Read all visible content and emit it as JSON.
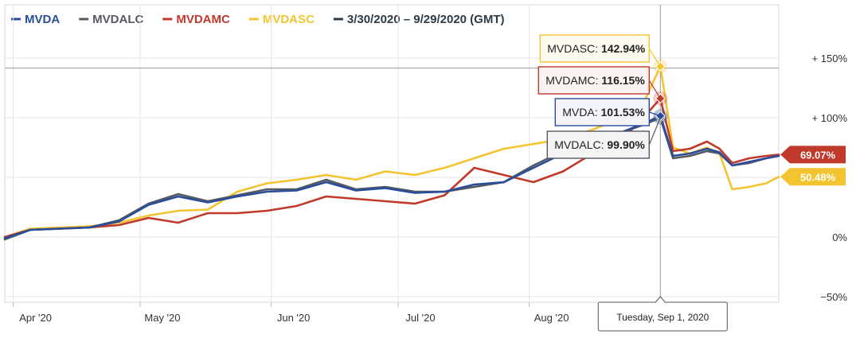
{
  "legend": {
    "items": [
      {
        "label": "MVDA",
        "color": "#2a4d9b"
      },
      {
        "label": "MVDALC",
        "color": "#555a61"
      },
      {
        "label": "MVDAMC",
        "color": "#c0392b"
      },
      {
        "label": "MVDASC",
        "color": "#f4c430"
      }
    ],
    "range_label": "3/30/2020 – 9/29/2020 (GMT)",
    "range_color": "#2e3b45"
  },
  "chart_data": {
    "type": "line",
    "x_unit": "date",
    "x_range": [
      "2020-03-30",
      "2020-09-29"
    ],
    "y_unit": "percent change",
    "ylim": [
      -50,
      160
    ],
    "y_ticks": [
      {
        "value": 150,
        "label": "+ 150%"
      },
      {
        "value": 100,
        "label": "+ 100%"
      },
      {
        "value": 0,
        "label": "0%"
      },
      {
        "value": -50,
        "label": "−50%"
      }
    ],
    "x_ticks": [
      {
        "date": "2020-04-01",
        "label": "Apr '20"
      },
      {
        "date": "2020-05-01",
        "label": "May '20"
      },
      {
        "date": "2020-06-01",
        "label": "Jun '20"
      },
      {
        "date": "2020-07-01",
        "label": "Jul '20"
      },
      {
        "date": "2020-08-01",
        "label": "Aug '20"
      }
    ],
    "grid": true,
    "series": [
      {
        "name": "MVDASC",
        "color": "#f4c430",
        "points": [
          [
            "2020-03-30",
            0
          ],
          [
            "2020-04-05",
            7
          ],
          [
            "2020-04-12",
            8
          ],
          [
            "2020-04-19",
            9
          ],
          [
            "2020-04-26",
            12
          ],
          [
            "2020-05-03",
            18
          ],
          [
            "2020-05-10",
            22
          ],
          [
            "2020-05-17",
            23
          ],
          [
            "2020-05-24",
            38
          ],
          [
            "2020-05-31",
            45
          ],
          [
            "2020-06-07",
            48
          ],
          [
            "2020-06-14",
            52
          ],
          [
            "2020-06-21",
            48
          ],
          [
            "2020-06-28",
            55
          ],
          [
            "2020-07-05",
            52
          ],
          [
            "2020-07-12",
            58
          ],
          [
            "2020-07-19",
            66
          ],
          [
            "2020-07-26",
            74
          ],
          [
            "2020-08-02",
            78
          ],
          [
            "2020-08-09",
            82
          ],
          [
            "2020-08-16",
            90
          ],
          [
            "2020-08-23",
            100
          ],
          [
            "2020-08-28",
            112
          ],
          [
            "2020-09-01",
            142.94
          ],
          [
            "2020-09-04",
            75
          ],
          [
            "2020-09-08",
            70
          ],
          [
            "2020-09-12",
            75
          ],
          [
            "2020-09-15",
            70
          ],
          [
            "2020-09-18",
            40
          ],
          [
            "2020-09-22",
            42
          ],
          [
            "2020-09-26",
            45
          ],
          [
            "2020-09-29",
            50.48
          ]
        ]
      },
      {
        "name": "MVDAMC",
        "color": "#c0392b",
        "points": [
          [
            "2020-03-30",
            0
          ],
          [
            "2020-04-05",
            6
          ],
          [
            "2020-04-12",
            7
          ],
          [
            "2020-04-19",
            8
          ],
          [
            "2020-04-26",
            10
          ],
          [
            "2020-05-03",
            16
          ],
          [
            "2020-05-10",
            12
          ],
          [
            "2020-05-17",
            20
          ],
          [
            "2020-05-24",
            20
          ],
          [
            "2020-05-31",
            22
          ],
          [
            "2020-06-07",
            26
          ],
          [
            "2020-06-14",
            34
          ],
          [
            "2020-06-21",
            32
          ],
          [
            "2020-06-28",
            30
          ],
          [
            "2020-07-05",
            28
          ],
          [
            "2020-07-12",
            35
          ],
          [
            "2020-07-19",
            58
          ],
          [
            "2020-07-26",
            52
          ],
          [
            "2020-08-02",
            46
          ],
          [
            "2020-08-09",
            55
          ],
          [
            "2020-08-16",
            70
          ],
          [
            "2020-08-23",
            82
          ],
          [
            "2020-08-28",
            100
          ],
          [
            "2020-09-01",
            116.15
          ],
          [
            "2020-09-04",
            72
          ],
          [
            "2020-09-08",
            74
          ],
          [
            "2020-09-12",
            80
          ],
          [
            "2020-09-15",
            74
          ],
          [
            "2020-09-18",
            62
          ],
          [
            "2020-09-22",
            66
          ],
          [
            "2020-09-26",
            68
          ],
          [
            "2020-09-29",
            69.07
          ]
        ]
      },
      {
        "name": "MVDALC",
        "color": "#555a61",
        "points": [
          [
            "2020-03-30",
            -2
          ],
          [
            "2020-04-05",
            6
          ],
          [
            "2020-04-12",
            7
          ],
          [
            "2020-04-19",
            8
          ],
          [
            "2020-04-26",
            14
          ],
          [
            "2020-05-03",
            28
          ],
          [
            "2020-05-10",
            36
          ],
          [
            "2020-05-17",
            30
          ],
          [
            "2020-05-24",
            35
          ],
          [
            "2020-05-31",
            40
          ],
          [
            "2020-06-07",
            40
          ],
          [
            "2020-06-14",
            48
          ],
          [
            "2020-06-21",
            40
          ],
          [
            "2020-06-28",
            42
          ],
          [
            "2020-07-05",
            38
          ],
          [
            "2020-07-12",
            38
          ],
          [
            "2020-07-19",
            42
          ],
          [
            "2020-07-26",
            46
          ],
          [
            "2020-08-02",
            60
          ],
          [
            "2020-08-09",
            72
          ],
          [
            "2020-08-16",
            80
          ],
          [
            "2020-08-23",
            88
          ],
          [
            "2020-08-28",
            94
          ],
          [
            "2020-09-01",
            99.9
          ],
          [
            "2020-09-04",
            66
          ],
          [
            "2020-09-08",
            68
          ],
          [
            "2020-09-12",
            72
          ],
          [
            "2020-09-15",
            70
          ],
          [
            "2020-09-18",
            60
          ],
          [
            "2020-09-22",
            62
          ],
          [
            "2020-09-26",
            66
          ],
          [
            "2020-09-29",
            68
          ]
        ]
      },
      {
        "name": "MVDA",
        "color": "#2a4d9b",
        "points": [
          [
            "2020-03-30",
            -1
          ],
          [
            "2020-04-05",
            6
          ],
          [
            "2020-04-12",
            7
          ],
          [
            "2020-04-19",
            8
          ],
          [
            "2020-04-26",
            13
          ],
          [
            "2020-05-03",
            27
          ],
          [
            "2020-05-10",
            34
          ],
          [
            "2020-05-17",
            29
          ],
          [
            "2020-05-24",
            34
          ],
          [
            "2020-05-31",
            38
          ],
          [
            "2020-06-07",
            39
          ],
          [
            "2020-06-14",
            46
          ],
          [
            "2020-06-21",
            39
          ],
          [
            "2020-06-28",
            41
          ],
          [
            "2020-07-05",
            37
          ],
          [
            "2020-07-12",
            38
          ],
          [
            "2020-07-19",
            44
          ],
          [
            "2020-07-26",
            46
          ],
          [
            "2020-08-02",
            58
          ],
          [
            "2020-08-09",
            70
          ],
          [
            "2020-08-16",
            78
          ],
          [
            "2020-08-23",
            88
          ],
          [
            "2020-08-28",
            95
          ],
          [
            "2020-09-01",
            101.53
          ],
          [
            "2020-09-04",
            68
          ],
          [
            "2020-09-08",
            70
          ],
          [
            "2020-09-12",
            74
          ],
          [
            "2020-09-15",
            71
          ],
          [
            "2020-09-18",
            60
          ],
          [
            "2020-09-22",
            63
          ],
          [
            "2020-09-26",
            66
          ],
          [
            "2020-09-29",
            68
          ]
        ]
      }
    ],
    "hover": {
      "date": "2020-09-01",
      "date_label": "Tuesday, Sep 1, 2020",
      "tooltips": [
        {
          "name": "MVDASC",
          "label": "MVDASC: ",
          "value": "142.94%",
          "color": "#f4c430",
          "bg": "#fdfbef"
        },
        {
          "name": "MVDAMC",
          "label": "MVDAMC: ",
          "value": "116.15%",
          "color": "#c0392b",
          "bg": "#fbf3f2"
        },
        {
          "name": "MVDA",
          "label": "MVDA: ",
          "value": "101.53%",
          "color": "#2a4d9b",
          "bg": "#f3f5fa"
        },
        {
          "name": "MVDALC",
          "label": "MVDALC: ",
          "value": "99.90%",
          "color": "#555a61",
          "bg": "#f4f4f5"
        }
      ]
    },
    "last_value_flags": [
      {
        "name": "MVDAMC",
        "value": 69.07,
        "label": "69.07%",
        "color": "#c0392b",
        "text_color": "#ffffff"
      },
      {
        "name": "MVDASC",
        "value": 50.48,
        "label": "50.48%",
        "color": "#f4c430",
        "text_color": "#ffffff"
      }
    ]
  }
}
